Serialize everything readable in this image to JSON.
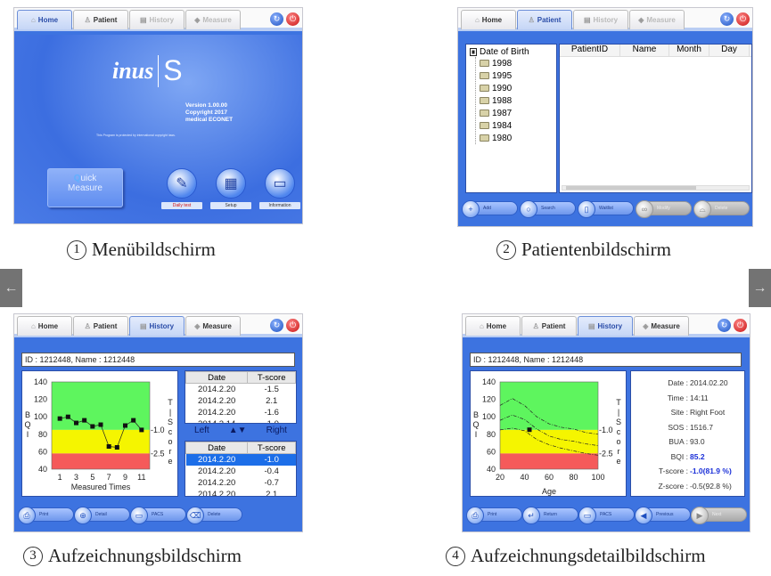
{
  "tabs": [
    "Home",
    "Patient",
    "History",
    "Measure"
  ],
  "tab_icons": [
    "home-icon",
    "patient-icon",
    "history-icon",
    "measure-icon"
  ],
  "colors": {
    "body_blue": "#3d73e0",
    "green_zone": "#5ef55e",
    "yellow_zone": "#f5f500",
    "red_zone": "#f55a5a",
    "highlight": "#1a2fd8"
  },
  "side_nav": {
    "prev": "←",
    "next": "→"
  },
  "screens": [
    {
      "caption_num": "1",
      "caption": "Menübildschirm",
      "active_tab": 0,
      "logo": "inus",
      "logo_s": "S",
      "version": "Version 1.00.00",
      "copyright": "Copyright 2017",
      "company": "medical ECONET",
      "notice": "This Program is protected by international copyright laws.",
      "quick_measure": {
        "q": "Q",
        "line1": "uick",
        "line2": "Measure"
      },
      "buttons": [
        "Daily test",
        "Setup",
        "Information"
      ]
    },
    {
      "caption_num": "2",
      "caption": "Patientenbildschirm",
      "active_tab": 1,
      "tree_root": "Date of Birth",
      "years": [
        "1998",
        "1995",
        "1990",
        "1988",
        "1987",
        "1984",
        "1980"
      ],
      "columns": [
        "PatientID",
        "Name",
        "Month",
        "Day"
      ],
      "buttons": [
        "Add",
        "Search",
        "Waitlist",
        "Modify",
        "Delete"
      ]
    },
    {
      "caption_num": "3",
      "caption": "Aufzeichnungsbildschirm",
      "active_tab": 2,
      "id_line": "ID : 1212448, Name : 1212448",
      "table_top": {
        "headers": [
          "Date",
          "T-score"
        ],
        "rows": [
          [
            "2014.2.20",
            "-1.5"
          ],
          [
            "2014.2.20",
            "2.1"
          ],
          [
            "2014.2.20",
            "-1.6"
          ],
          [
            "2014.2.14",
            "-1.0"
          ]
        ]
      },
      "nav": {
        "left": "Left",
        "arrows": "▲▼",
        "right": "Right"
      },
      "table_bottom": {
        "headers": [
          "Date",
          "T-score"
        ],
        "rows": [
          [
            "2014.2.20",
            "-1.0"
          ],
          [
            "2014.2.20",
            "-0.4"
          ],
          [
            "2014.2.20",
            "-0.7"
          ],
          [
            "2014.2.20",
            "2.1"
          ]
        ],
        "selected": 0
      },
      "buttons": [
        "Print",
        "Detail",
        "PACS",
        "Delete"
      ]
    },
    {
      "caption_num": "4",
      "caption": "Aufzeichnungsdetailbildschirm",
      "active_tab": 2,
      "id_line": "ID : 1212448, Name : 1212448",
      "info": [
        [
          "Date",
          "2014.02.20"
        ],
        [
          "Time",
          "14:11"
        ],
        [
          "Site",
          "Right Foot"
        ],
        [
          "SOS",
          "1516.7"
        ],
        [
          "BUA",
          "93.0"
        ],
        [
          "BQI",
          "85.2"
        ],
        [
          "T-score",
          "-1.0(81.9 %)"
        ],
        [
          "Z-score",
          "-0.5(92.8 %)"
        ]
      ],
      "info_highlight": [
        "BQI",
        "T-score"
      ],
      "buttons": [
        "Print",
        "Return",
        "PACS",
        "Previous",
        "Next"
      ]
    }
  ],
  "chart_data": [
    {
      "type": "line",
      "xlabel": "Measured Times",
      "ylabel": "BQI",
      "y2label": "T-Score",
      "ylim": [
        40,
        140
      ],
      "yticks": [
        40,
        60,
        80,
        100,
        120,
        140
      ],
      "xticks": [
        1,
        3,
        5,
        7,
        9,
        11
      ],
      "xlim": [
        0,
        12
      ],
      "zones": [
        {
          "from": 85,
          "to": 140,
          "color": "#5ef55e"
        },
        {
          "from": 58,
          "to": 85,
          "color": "#f5f500"
        },
        {
          "from": 40,
          "to": 58,
          "color": "#f55a5a"
        }
      ],
      "y2_marks": [
        {
          "label": "-1.0",
          "y": 85
        },
        {
          "label": "-2.5",
          "y": 58
        }
      ],
      "x": [
        1,
        2,
        3,
        4,
        5,
        6,
        7,
        8,
        9,
        10,
        11
      ],
      "values": [
        98,
        100,
        93,
        96,
        89,
        91,
        66,
        65,
        90,
        96,
        85
      ]
    },
    {
      "type": "line",
      "xlabel": "Age",
      "ylabel": "BQI",
      "y2label": "T-Score",
      "ylim": [
        40,
        140
      ],
      "yticks": [
        40,
        60,
        80,
        100,
        120,
        140
      ],
      "xticks": [
        20,
        40,
        60,
        80,
        100
      ],
      "xlim": [
        20,
        100
      ],
      "zones": [
        {
          "from": 85,
          "to": 140,
          "color": "#5ef55e"
        },
        {
          "from": 58,
          "to": 85,
          "color": "#f5f500"
        },
        {
          "from": 40,
          "to": 58,
          "color": "#f55a5a"
        }
      ],
      "y2_marks": [
        {
          "label": "-1.0",
          "y": 85
        },
        {
          "label": "-2.5",
          "y": 58
        }
      ],
      "series": [
        {
          "x": [
            20,
            30,
            40,
            50,
            60,
            70,
            80,
            90,
            100
          ],
          "values": [
            113,
            121,
            113,
            100,
            92,
            88,
            86,
            82,
            80
          ]
        },
        {
          "x": [
            20,
            30,
            40,
            50,
            60,
            70,
            80,
            90,
            100
          ],
          "values": [
            96,
            102,
            97,
            86,
            78,
            74,
            72,
            69,
            67
          ]
        },
        {
          "x": [
            20,
            30,
            40,
            50,
            60,
            70,
            80,
            90,
            100
          ],
          "values": [
            85,
            87,
            84,
            74,
            68,
            64,
            61,
            58,
            56
          ]
        }
      ],
      "point": {
        "x": 44,
        "y": 85.2
      }
    }
  ]
}
